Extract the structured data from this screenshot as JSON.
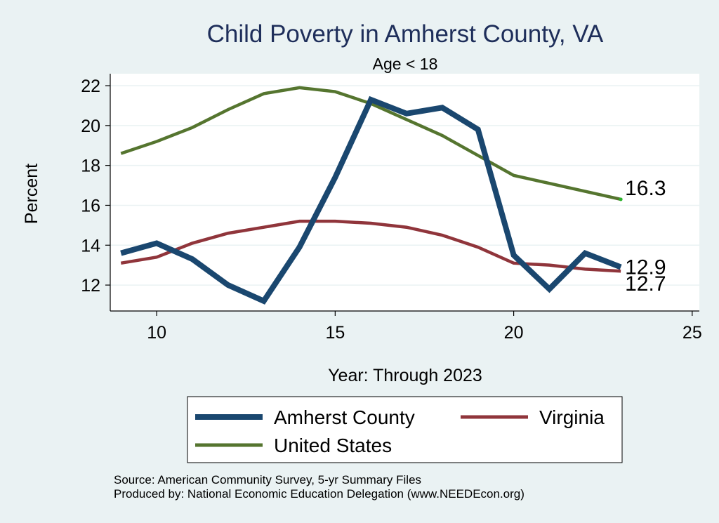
{
  "chart_data": {
    "type": "line",
    "title": "Child Poverty in Amherst County, VA",
    "subtitle": "Age < 18",
    "xlabel": "Year: Through 2023",
    "ylabel": "Percent",
    "xlim": [
      8.7,
      25.2
    ],
    "ylim": [
      10.7,
      22.6
    ],
    "xticks": [
      10,
      15,
      20,
      25
    ],
    "yticks": [
      12,
      14,
      16,
      18,
      20,
      22
    ],
    "grid": "horizontal",
    "legend_position": "bottom",
    "x": [
      9,
      10,
      11,
      12,
      13,
      14,
      15,
      16,
      17,
      18,
      19,
      20,
      21,
      22,
      23
    ],
    "series": [
      {
        "name": "Amherst County",
        "color": "#1a476f",
        "values": [
          13.6,
          14.1,
          13.3,
          12.0,
          11.2,
          13.9,
          17.4,
          21.3,
          20.6,
          20.9,
          19.8,
          13.5,
          11.8,
          13.6,
          12.9
        ],
        "end_label": "12.9"
      },
      {
        "name": "Virginia",
        "color": "#90353b",
        "values": [
          13.1,
          13.4,
          14.1,
          14.6,
          14.9,
          15.2,
          15.2,
          15.1,
          14.9,
          14.5,
          13.9,
          13.1,
          13.0,
          12.8,
          12.7
        ],
        "end_label": "12.7"
      },
      {
        "name": "United States",
        "color": "#55752f",
        "values": [
          18.6,
          19.2,
          19.9,
          20.8,
          21.6,
          21.9,
          21.7,
          21.1,
          20.3,
          19.5,
          18.5,
          17.5,
          17.1,
          16.7,
          16.3
        ],
        "end_label": "16.3"
      }
    ]
  },
  "notes": {
    "source": "Source: American Community Survey, 5-yr Summary Files",
    "produced_by": "Produced by: National Economic Education Delegation (www.NEEDEcon.org)"
  }
}
